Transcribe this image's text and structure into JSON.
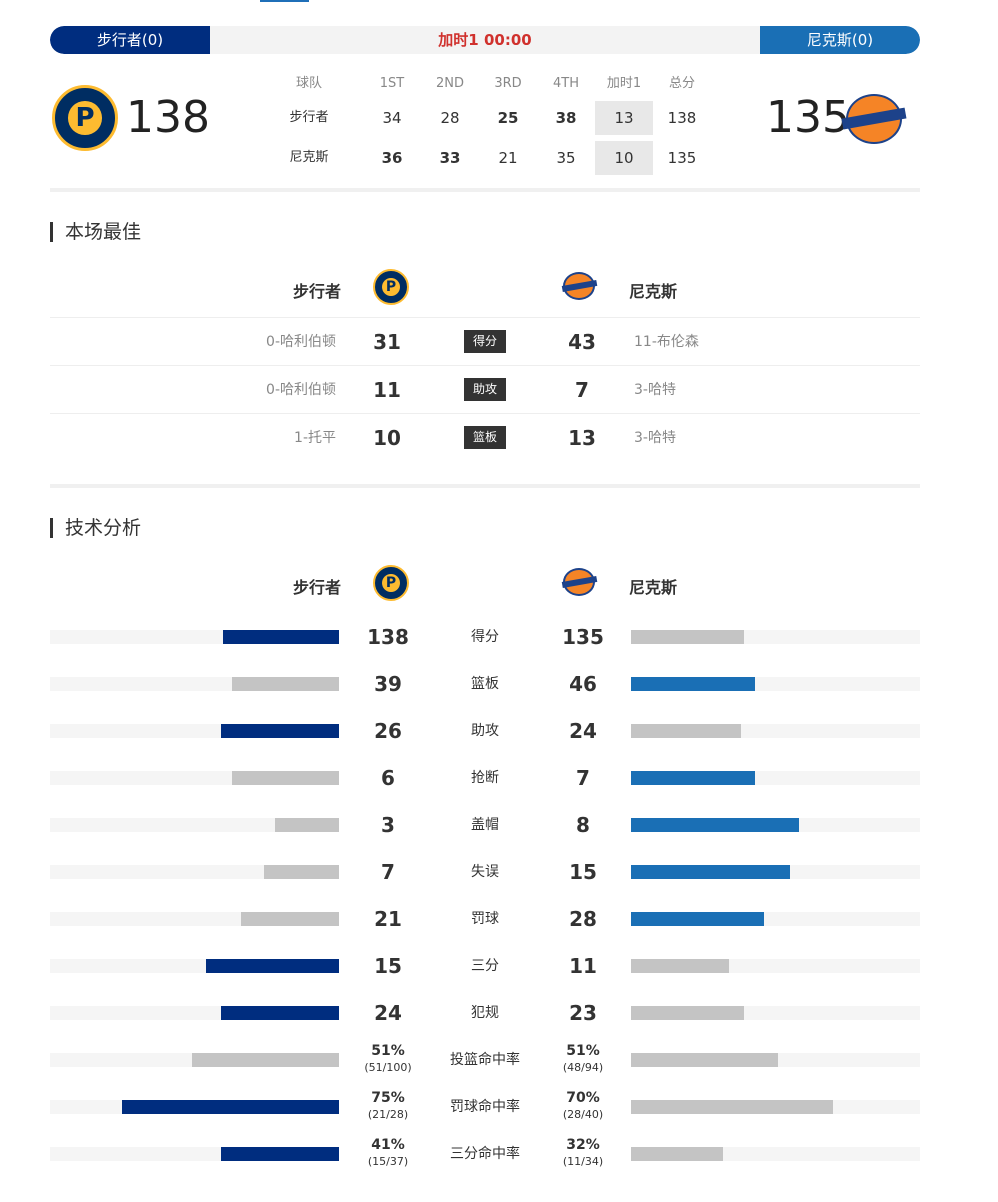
{
  "status": {
    "home_label": "步行者(0)",
    "away_label": "尼克斯(0)",
    "state": "加时1 00:00"
  },
  "colors": {
    "home_primary": "#002d7f",
    "away_primary": "#1a6fb5",
    "loser_bar": "#c4c4c4",
    "state_red": "#d0312d"
  },
  "home": {
    "name": "步行者",
    "score": "138",
    "logo_icon": "pacers-logo-icon"
  },
  "away": {
    "name": "尼克斯",
    "score": "135",
    "logo_icon": "knicks-logo-icon"
  },
  "quarters": {
    "headers": [
      "球队",
      "1ST",
      "2ND",
      "3RD",
      "4TH",
      "加时1",
      "总分"
    ],
    "rows": [
      {
        "team": "步行者",
        "scores": [
          "34",
          "28",
          "25",
          "38",
          "13",
          "138"
        ],
        "bold": [
          false,
          false,
          true,
          true,
          false,
          false
        ]
      },
      {
        "team": "尼克斯",
        "scores": [
          "36",
          "33",
          "21",
          "35",
          "10",
          "135"
        ],
        "bold": [
          true,
          true,
          false,
          false,
          false,
          false
        ]
      }
    ]
  },
  "best": {
    "title": "本场最佳",
    "rows": [
      {
        "home_player": "0-哈利伯顿",
        "home_value": "31",
        "category": "得分",
        "away_value": "43",
        "away_player": "11-布伦森"
      },
      {
        "home_player": "0-哈利伯顿",
        "home_value": "11",
        "category": "助攻",
        "away_value": "7",
        "away_player": "3-哈特"
      },
      {
        "home_player": "1-托平",
        "home_value": "10",
        "category": "篮板",
        "away_value": "13",
        "away_player": "3-哈特"
      }
    ]
  },
  "stats": {
    "title": "技术分析",
    "rows": [
      {
        "label": "得分",
        "home": "138",
        "away": "135",
        "home_fill": 0.4,
        "away_fill": 0.39,
        "leader": "home"
      },
      {
        "label": "篮板",
        "home": "39",
        "away": "46",
        "home_fill": 0.37,
        "away_fill": 0.43,
        "leader": "away"
      },
      {
        "label": "助攻",
        "home": "26",
        "away": "24",
        "home_fill": 0.41,
        "away_fill": 0.38,
        "leader": "home"
      },
      {
        "label": "抢断",
        "home": "6",
        "away": "7",
        "home_fill": 0.37,
        "away_fill": 0.43,
        "leader": "away"
      },
      {
        "label": "盖帽",
        "home": "3",
        "away": "8",
        "home_fill": 0.22,
        "away_fill": 0.58,
        "leader": "away"
      },
      {
        "label": "失误",
        "home": "7",
        "away": "15",
        "home_fill": 0.26,
        "away_fill": 0.55,
        "leader": "away"
      },
      {
        "label": "罚球",
        "home": "21",
        "away": "28",
        "home_fill": 0.34,
        "away_fill": 0.46,
        "leader": "away"
      },
      {
        "label": "三分",
        "home": "15",
        "away": "11",
        "home_fill": 0.46,
        "away_fill": 0.34,
        "leader": "home"
      },
      {
        "label": "犯规",
        "home": "24",
        "away": "23",
        "home_fill": 0.41,
        "away_fill": 0.39,
        "leader": "home"
      }
    ],
    "pct_rows": [
      {
        "label": "投篮命中率",
        "home_pct": "51%",
        "home_detail": "(51/100)",
        "away_pct": "51%",
        "away_detail": "(48/94)",
        "home_fill": 0.51,
        "away_fill": 0.51,
        "leader": "none"
      },
      {
        "label": "罚球命中率",
        "home_pct": "75%",
        "home_detail": "(21/28)",
        "away_pct": "70%",
        "away_detail": "(28/40)",
        "home_fill": 0.75,
        "away_fill": 0.7,
        "leader": "home"
      },
      {
        "label": "三分命中率",
        "home_pct": "41%",
        "home_detail": "(15/37)",
        "away_pct": "32%",
        "away_detail": "(11/34)",
        "home_fill": 0.41,
        "away_fill": 0.32,
        "leader": "home"
      }
    ]
  }
}
